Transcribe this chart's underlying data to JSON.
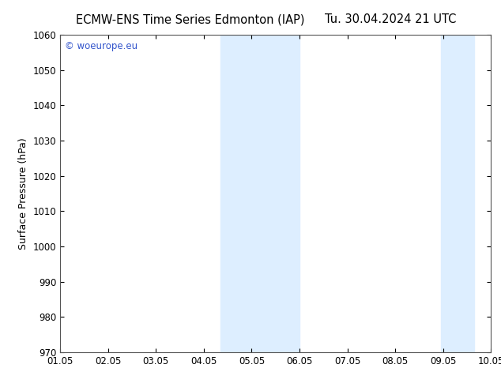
{
  "title_left": "ECMW-ENS Time Series Edmonton (IAP)",
  "title_right": "Tu. 30.04.2024 21 UTC",
  "ylabel": "Surface Pressure (hPa)",
  "ylim": [
    970,
    1060
  ],
  "yticks": [
    970,
    980,
    990,
    1000,
    1010,
    1020,
    1030,
    1040,
    1050,
    1060
  ],
  "xlim_start": 0,
  "xlim_end": 9,
  "xtick_labels": [
    "01.05",
    "02.05",
    "03.05",
    "04.05",
    "05.05",
    "06.05",
    "07.05",
    "08.05",
    "09.05",
    "10.05"
  ],
  "band1_x_start": 3.35,
  "band1_x_end": 5.0,
  "band2_x_start": 7.95,
  "band2_x_end": 8.65,
  "band_color": "#ddeeff",
  "background_color": "#ffffff",
  "watermark_text": "© woeurope.eu",
  "watermark_color": "#3355cc",
  "title_fontsize": 10.5,
  "label_fontsize": 9,
  "tick_fontsize": 8.5
}
